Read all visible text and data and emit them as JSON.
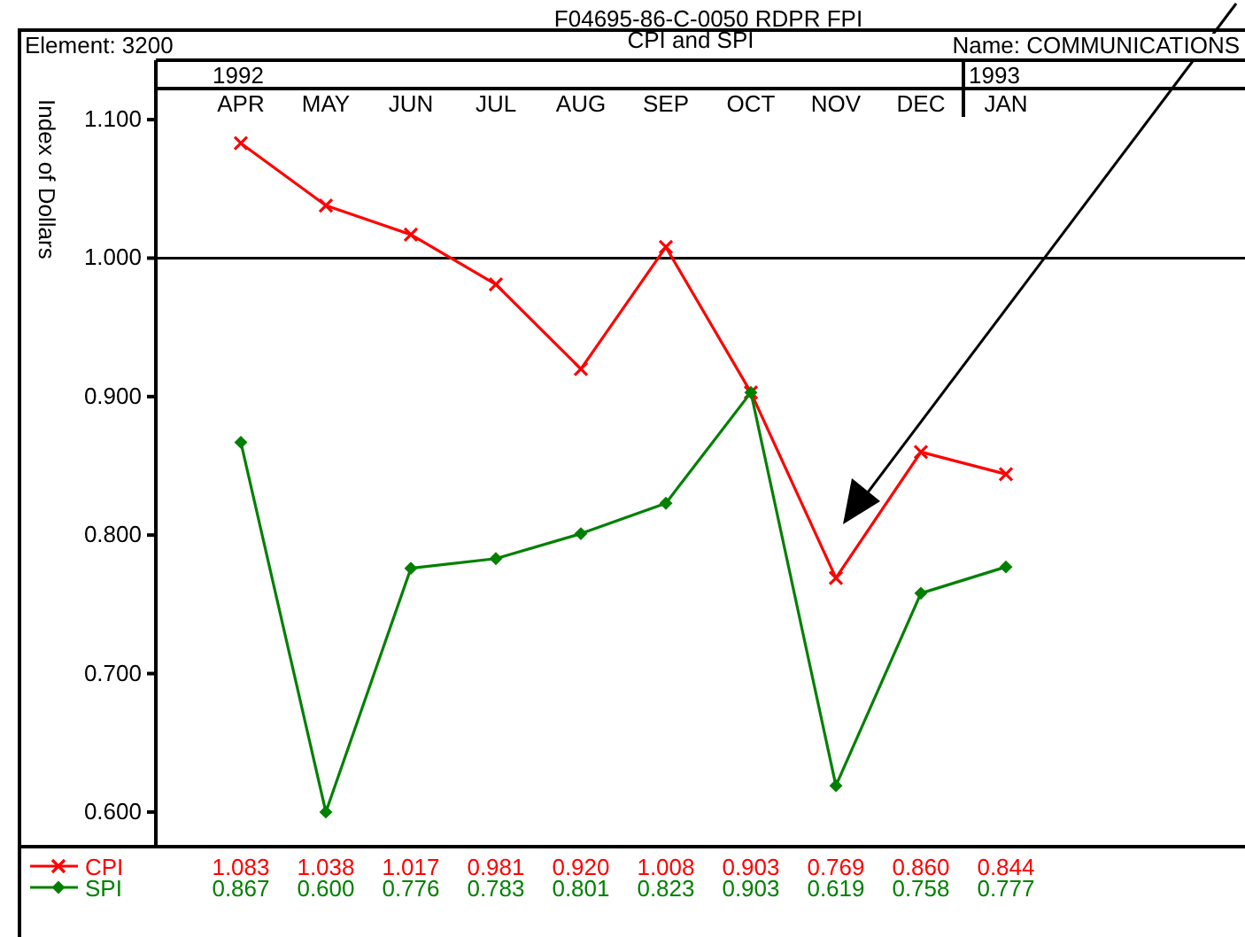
{
  "chart_data": {
    "type": "line",
    "title": "F04695-86-C-0050 RDPR FPI",
    "subtitle": "CPI and SPI",
    "ylabel": "Index of Dollars",
    "annotations": [
      "Element: 3200",
      "Name: COMMUNICATIONS",
      "1992",
      "1993"
    ],
    "categories": [
      "APR",
      "MAY",
      "JUN",
      "JUL",
      "AUG",
      "SEP",
      "OCT",
      "NOV",
      "DEC",
      "JAN"
    ],
    "series": [
      {
        "name": "CPI",
        "color": "#ff0000",
        "marker": "cross",
        "values": [
          1.083,
          1.038,
          1.017,
          0.981,
          0.92,
          1.008,
          0.903,
          0.769,
          0.86,
          0.844
        ],
        "value_labels": [
          "1.083",
          "1.038",
          "1.017",
          "0.981",
          "0.920",
          "1.008",
          "0.903",
          "0.769",
          "0.860",
          "0.844"
        ]
      },
      {
        "name": "SPI",
        "color": "#008000",
        "marker": "diamond",
        "values": [
          0.867,
          0.6,
          0.776,
          0.783,
          0.801,
          0.823,
          0.903,
          0.619,
          0.758,
          0.777
        ],
        "value_labels": [
          "0.867",
          "0.600",
          "0.776",
          "0.783",
          "0.801",
          "0.823",
          "0.903",
          "0.619",
          "0.758",
          "0.777"
        ]
      }
    ],
    "ylim": [
      0.575,
      1.125
    ],
    "yticks": [
      {
        "value": 0.6,
        "label": "0.600"
      },
      {
        "value": 0.7,
        "label": "0.700"
      },
      {
        "value": 0.8,
        "label": "0.800"
      },
      {
        "value": 0.9,
        "label": "0.900"
      },
      {
        "value": 1.0,
        "label": "1.000"
      },
      {
        "value": 1.1,
        "label": "1.100"
      }
    ],
    "ref_lines": [
      {
        "axis": "y",
        "value": 1.0,
        "color": "#000000"
      }
    ],
    "grid": false,
    "legend": "bottom left",
    "line_style": "solid"
  }
}
